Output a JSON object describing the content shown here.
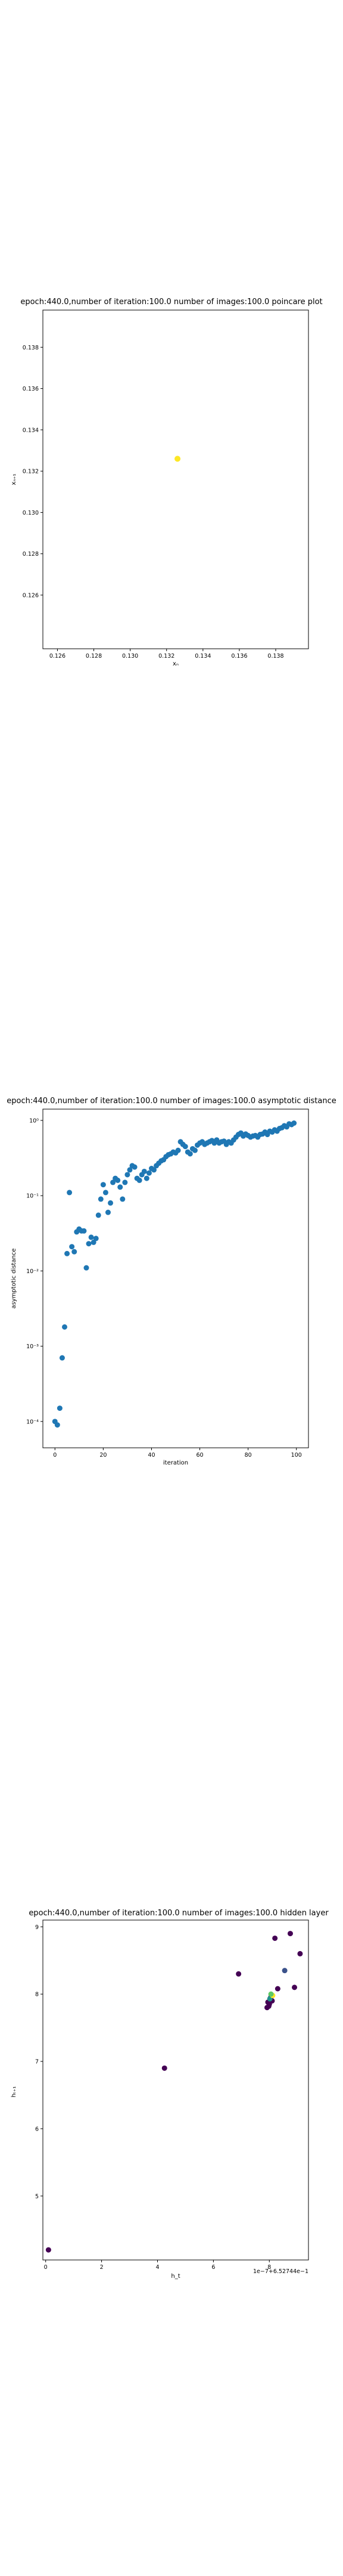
{
  "chart_data": [
    {
      "type": "scatter",
      "title": "epoch:440.0,number of iteration:100.0 number of images:100.0 poincare plot",
      "xlabel": "xₙ",
      "ylabel": "xₙ₊₁",
      "xlim": [
        0.1252,
        0.1398
      ],
      "ylim": [
        0.1234,
        0.1398
      ],
      "xticks": [
        "0.126",
        "0.128",
        "0.130",
        "0.132",
        "0.134",
        "0.136",
        "0.138"
      ],
      "yticks": [
        "0.126",
        "0.128",
        "0.130",
        "0.132",
        "0.134",
        "0.136",
        "0.138"
      ],
      "x": [
        0.1326
      ],
      "y": [
        0.1326
      ],
      "colors": [
        "#fde725"
      ],
      "grid": false
    },
    {
      "type": "scatter",
      "title": "epoch:440.0,number of iteration:100.0  number of images:100.0 asymptotic distance",
      "xlabel": "iteration",
      "ylabel": "asymptotic distance",
      "xlim": [
        -5,
        105
      ],
      "ylim_log10": [
        -4.35,
        0.15
      ],
      "yscale": "log",
      "xticks": [
        "0",
        "20",
        "40",
        "60",
        "80",
        "100"
      ],
      "yticks": [
        "10⁰",
        "10⁻¹",
        "10⁻²",
        "10⁻³",
        "10⁻⁴"
      ],
      "x": [
        0,
        1,
        2,
        3,
        4,
        5,
        6,
        7,
        8,
        9,
        10,
        11,
        12,
        13,
        14,
        15,
        16,
        17,
        18,
        19,
        20,
        21,
        22,
        23,
        24,
        25,
        26,
        27,
        28,
        29,
        30,
        31,
        32,
        33,
        34,
        35,
        36,
        37,
        38,
        39,
        40,
        41,
        42,
        43,
        44,
        45,
        46,
        47,
        48,
        49,
        50,
        51,
        52,
        53,
        54,
        55,
        56,
        57,
        58,
        59,
        60,
        61,
        62,
        63,
        64,
        65,
        66,
        67,
        68,
        69,
        70,
        71,
        72,
        73,
        74,
        75,
        76,
        77,
        78,
        79,
        80,
        81,
        82,
        83,
        84,
        85,
        86,
        87,
        88,
        89,
        90,
        91,
        92,
        93,
        94,
        95,
        96,
        97,
        98,
        99
      ],
      "y": [
        0.0001,
        9e-05,
        0.00015,
        0.0007,
        0.0018,
        0.017,
        0.11,
        0.021,
        0.018,
        0.033,
        0.036,
        0.034,
        0.034,
        0.011,
        0.023,
        0.028,
        0.024,
        0.027,
        0.055,
        0.09,
        0.14,
        0.11,
        0.06,
        0.08,
        0.15,
        0.17,
        0.16,
        0.13,
        0.09,
        0.15,
        0.19,
        0.22,
        0.25,
        0.24,
        0.17,
        0.16,
        0.19,
        0.21,
        0.17,
        0.2,
        0.23,
        0.22,
        0.25,
        0.27,
        0.29,
        0.3,
        0.33,
        0.35,
        0.36,
        0.38,
        0.37,
        0.4,
        0.52,
        0.48,
        0.45,
        0.38,
        0.36,
        0.42,
        0.4,
        0.47,
        0.5,
        0.52,
        0.48,
        0.5,
        0.52,
        0.54,
        0.5,
        0.55,
        0.5,
        0.52,
        0.53,
        0.48,
        0.52,
        0.5,
        0.55,
        0.6,
        0.65,
        0.68,
        0.62,
        0.66,
        0.63,
        0.6,
        0.62,
        0.63,
        0.6,
        0.65,
        0.66,
        0.7,
        0.65,
        0.72,
        0.7,
        0.75,
        0.72,
        0.78,
        0.8,
        0.85,
        0.82,
        0.9,
        0.88,
        0.92
      ],
      "color": "#1f77b4",
      "grid": false
    },
    {
      "type": "scatter",
      "title": "epoch:440.0,number of iteration:100.0  number of images:100.0 hidden layer",
      "xlabel": "h_t",
      "ylabel": "hₜ₊₁",
      "xlim": [
        -0.1,
        9.4
      ],
      "ylim": [
        4.05,
        9.1
      ],
      "xticks": [
        "0",
        "2",
        "4",
        "6",
        "8"
      ],
      "yticks": [
        "5",
        "6",
        "7",
        "8",
        "9"
      ],
      "offset_text": "1e−7+6.52744e−1",
      "x": [
        0.1,
        4.25,
        6.9,
        8.05,
        8.2,
        8.75,
        9.1,
        8.55,
        8.9,
        7.92,
        8.0,
        8.1,
        7.95,
        8.02,
        8.12,
        7.98,
        8.06,
        8.3
      ],
      "y": [
        4.2,
        6.9,
        8.3,
        7.95,
        8.83,
        8.9,
        8.6,
        8.35,
        8.1,
        7.8,
        7.85,
        7.9,
        7.88,
        7.93,
        7.98,
        7.82,
        8.0,
        8.08
      ],
      "colors": [
        "#440154",
        "#440154",
        "#440154",
        "#440154",
        "#440154",
        "#440154",
        "#440154",
        "#3b528b",
        "#440154",
        "#440154",
        "#440154",
        "#440154",
        "#440154",
        "#21918c",
        "#fde725",
        "#440154",
        "#5ec962",
        "#440154"
      ],
      "grid": false
    }
  ]
}
